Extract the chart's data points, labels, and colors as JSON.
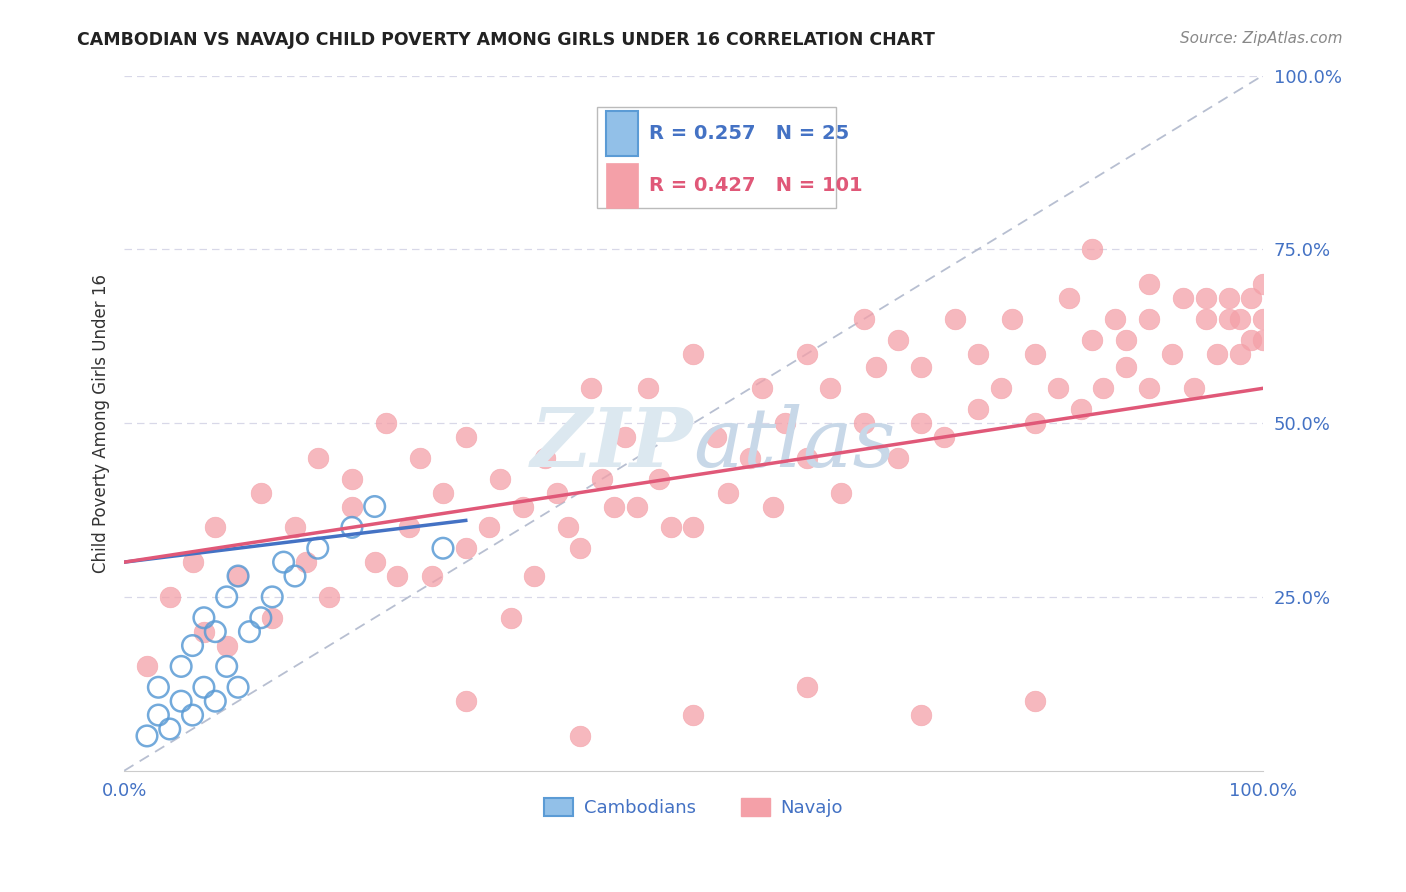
{
  "title": "CAMBODIAN VS NAVAJO CHILD POVERTY AMONG GIRLS UNDER 16 CORRELATION CHART",
  "source": "Source: ZipAtlas.com",
  "ylabel": "Child Poverty Among Girls Under 16",
  "legend": {
    "cambodian_label": "Cambodians",
    "navajo_label": "Navajo",
    "cambodian_R": 0.257,
    "cambodian_N": 25,
    "navajo_R": 0.427,
    "navajo_N": 101
  },
  "xlim": [
    0.0,
    1.0
  ],
  "ylim": [
    0.0,
    1.0
  ],
  "cambodian_color": "#92c0e8",
  "cambodian_edge_color": "#5b9bd5",
  "navajo_color": "#f4a0a8",
  "navajo_edge_color": "#f4a0a8",
  "cambodian_line_color": "#4472c4",
  "navajo_line_color": "#e05878",
  "diagonal_color": "#b0b8cc",
  "background_color": "#ffffff",
  "grid_color": "#d8d8e8",
  "title_color": "#222222",
  "source_color": "#888888",
  "tick_color": "#4472c4",
  "ylabel_color": "#333333",
  "watermark_color": "#dce8f0",
  "cam_x": [
    0.02,
    0.03,
    0.03,
    0.04,
    0.05,
    0.05,
    0.06,
    0.06,
    0.07,
    0.07,
    0.08,
    0.08,
    0.09,
    0.09,
    0.1,
    0.1,
    0.11,
    0.12,
    0.13,
    0.14,
    0.15,
    0.17,
    0.2,
    0.22,
    0.28
  ],
  "cam_y": [
    0.05,
    0.08,
    0.12,
    0.06,
    0.1,
    0.15,
    0.08,
    0.18,
    0.12,
    0.22,
    0.1,
    0.2,
    0.15,
    0.25,
    0.12,
    0.28,
    0.2,
    0.22,
    0.25,
    0.3,
    0.28,
    0.32,
    0.35,
    0.38,
    0.32
  ],
  "nav_x": [
    0.02,
    0.04,
    0.06,
    0.07,
    0.08,
    0.09,
    0.1,
    0.12,
    0.13,
    0.15,
    0.16,
    0.17,
    0.18,
    0.2,
    0.2,
    0.22,
    0.23,
    0.24,
    0.25,
    0.26,
    0.27,
    0.28,
    0.3,
    0.3,
    0.32,
    0.33,
    0.34,
    0.35,
    0.36,
    0.37,
    0.38,
    0.39,
    0.4,
    0.41,
    0.42,
    0.43,
    0.44,
    0.45,
    0.46,
    0.47,
    0.48,
    0.5,
    0.5,
    0.52,
    0.53,
    0.55,
    0.56,
    0.57,
    0.58,
    0.6,
    0.6,
    0.62,
    0.63,
    0.65,
    0.65,
    0.66,
    0.68,
    0.68,
    0.7,
    0.7,
    0.72,
    0.73,
    0.75,
    0.75,
    0.77,
    0.78,
    0.8,
    0.8,
    0.82,
    0.83,
    0.84,
    0.85,
    0.86,
    0.87,
    0.88,
    0.88,
    0.9,
    0.9,
    0.92,
    0.93,
    0.94,
    0.95,
    0.96,
    0.97,
    0.97,
    0.98,
    0.98,
    0.99,
    0.99,
    1.0,
    1.0,
    1.0,
    0.3,
    0.4,
    0.5,
    0.6,
    0.7,
    0.8,
    0.85,
    0.9,
    0.95
  ],
  "nav_y": [
    0.15,
    0.25,
    0.3,
    0.2,
    0.35,
    0.18,
    0.28,
    0.4,
    0.22,
    0.35,
    0.3,
    0.45,
    0.25,
    0.38,
    0.42,
    0.3,
    0.5,
    0.28,
    0.35,
    0.45,
    0.28,
    0.4,
    0.32,
    0.48,
    0.35,
    0.42,
    0.22,
    0.38,
    0.28,
    0.45,
    0.4,
    0.35,
    0.32,
    0.55,
    0.42,
    0.38,
    0.48,
    0.38,
    0.55,
    0.42,
    0.35,
    0.35,
    0.6,
    0.48,
    0.4,
    0.45,
    0.55,
    0.38,
    0.5,
    0.6,
    0.45,
    0.55,
    0.4,
    0.65,
    0.5,
    0.58,
    0.45,
    0.62,
    0.5,
    0.58,
    0.48,
    0.65,
    0.52,
    0.6,
    0.55,
    0.65,
    0.5,
    0.6,
    0.55,
    0.68,
    0.52,
    0.62,
    0.55,
    0.65,
    0.58,
    0.62,
    0.55,
    0.65,
    0.6,
    0.68,
    0.55,
    0.65,
    0.6,
    0.68,
    0.65,
    0.6,
    0.65,
    0.62,
    0.68,
    0.62,
    0.65,
    0.7,
    0.1,
    0.05,
    0.08,
    0.12,
    0.08,
    0.1,
    0.75,
    0.7,
    0.68
  ]
}
